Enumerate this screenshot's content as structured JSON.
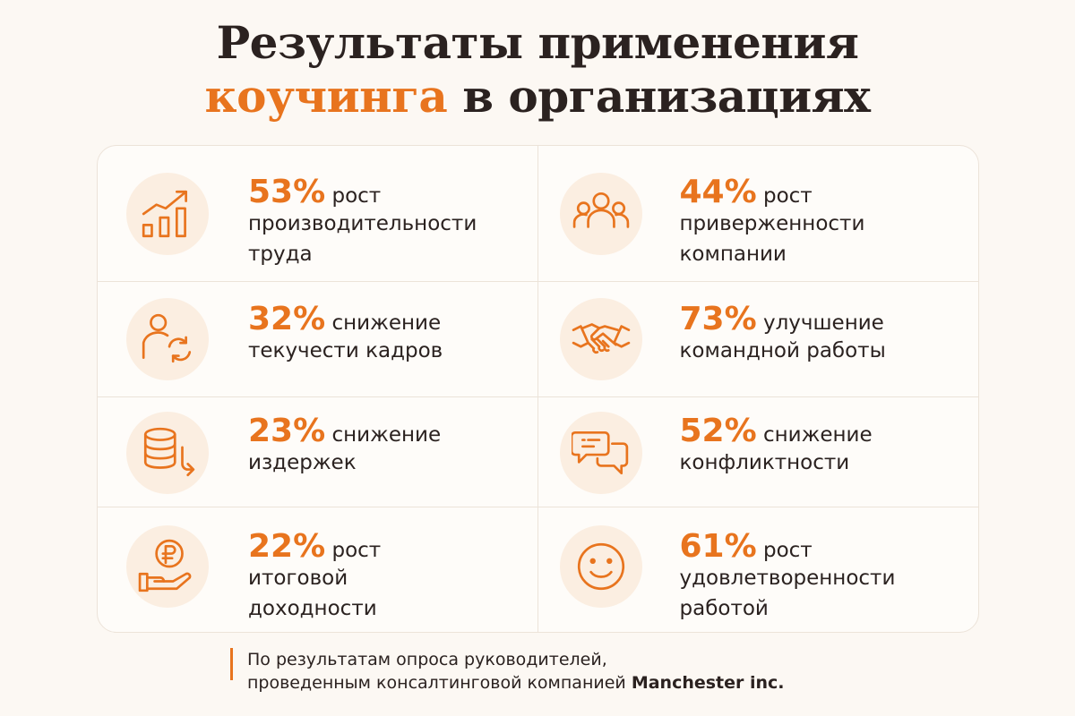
{
  "title": {
    "line1": "Результаты применения",
    "accent": "коучинга",
    "line2_rest": "в организациях"
  },
  "colors": {
    "accent": "#e8741e",
    "background": "#fcf8f3",
    "icon_bg": "#fbeee1",
    "text": "#2b2220"
  },
  "stats": [
    {
      "icon": "growth-chart-icon",
      "percent": "53%",
      "lead": "рост",
      "lines": [
        "производительности",
        "труда"
      ]
    },
    {
      "icon": "team-people-icon",
      "percent": "44%",
      "lead": "рост",
      "lines": [
        "приверженности",
        "компании"
      ]
    },
    {
      "icon": "person-rotate-icon",
      "percent": "32%",
      "lead": "снижение",
      "lines": [
        "текучести кадров"
      ]
    },
    {
      "icon": "handshake-icon",
      "percent": "73%",
      "lead": "улучшение",
      "lines": [
        "командной работы"
      ]
    },
    {
      "icon": "coins-down-icon",
      "percent": "23%",
      "lead": "снижение",
      "lines": [
        "издержек"
      ]
    },
    {
      "icon": "chat-bubbles-icon",
      "percent": "52%",
      "lead": "снижение",
      "lines": [
        "конфликтности"
      ]
    },
    {
      "icon": "ruble-hand-icon",
      "percent": "22%",
      "lead": "рост",
      "lines": [
        "итоговой",
        "доходности"
      ]
    },
    {
      "icon": "smile-icon",
      "percent": "61%",
      "lead": "рост",
      "lines": [
        "удовлетворенности",
        "работой"
      ]
    }
  ],
  "footnote": {
    "line1": "По результатам опроса руководителей,",
    "line2": "проведенным консалтинговой компанией",
    "company": "Manchester inc."
  }
}
